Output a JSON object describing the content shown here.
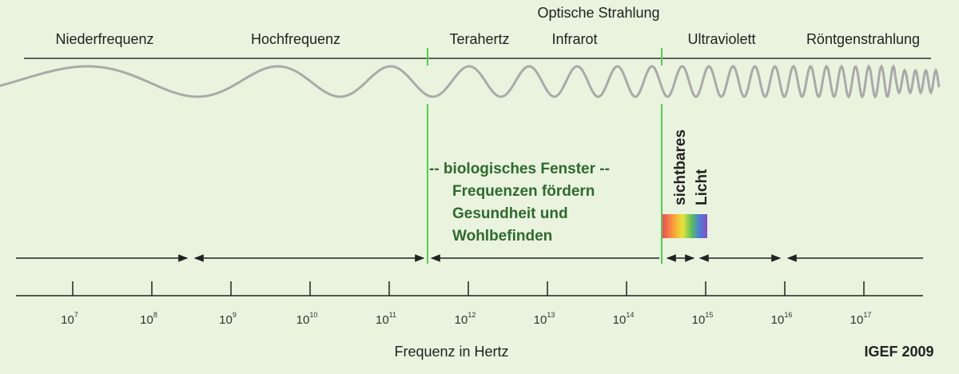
{
  "bands": {
    "group_label": "Optische Strahlung",
    "items": [
      "Niederfrequenz",
      "Hochfrequenz",
      "Terahertz",
      "Infrarot",
      "Ultraviolett",
      "Röntgenstrahlung"
    ]
  },
  "biological_window": {
    "lines": [
      "-- biologisches Fenster --",
      "Frequenzen fördern",
      "Gesundheit und",
      "Wohlbefinden"
    ]
  },
  "visible_light": {
    "lines": [
      "sichtbares",
      "Licht"
    ]
  },
  "axis": {
    "ticks": [
      {
        "base": "10",
        "exponent": "7"
      },
      {
        "base": "10",
        "exponent": "8"
      },
      {
        "base": "10",
        "exponent": "9"
      },
      {
        "base": "10",
        "exponent": "10"
      },
      {
        "base": "10",
        "exponent": "11"
      },
      {
        "base": "10",
        "exponent": "12"
      },
      {
        "base": "10",
        "exponent": "13"
      },
      {
        "base": "10",
        "exponent": "14"
      },
      {
        "base": "10",
        "exponent": "15"
      },
      {
        "base": "10",
        "exponent": "16"
      },
      {
        "base": "10",
        "exponent": "17"
      }
    ],
    "label": "Frequenz in Hertz"
  },
  "credit": "IGEF 2009"
}
